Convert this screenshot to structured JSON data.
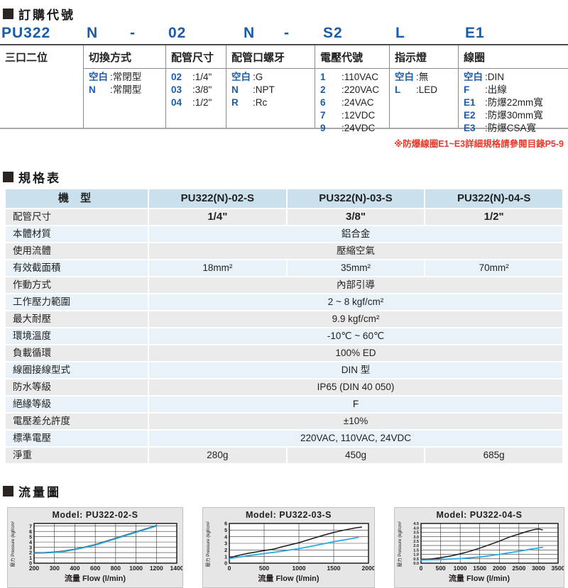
{
  "ordering": {
    "section_title": "訂購代號",
    "code": [
      "PU322",
      "N",
      "-",
      "02",
      "N",
      "-",
      "S2",
      "L",
      "E1"
    ],
    "columns": [
      {
        "header": "三口二位",
        "items": []
      },
      {
        "header": "切換方式",
        "items": [
          {
            "code": "空白",
            "desc": "常閉型"
          },
          {
            "code": "N",
            "desc": "常開型"
          }
        ]
      },
      {
        "header": "配管尺寸",
        "items": [
          {
            "code": "02",
            "desc": "1/4\""
          },
          {
            "code": "03",
            "desc": "3/8\""
          },
          {
            "code": "04",
            "desc": "1/2\""
          }
        ]
      },
      {
        "header": "配管口螺牙",
        "items": [
          {
            "code": "空白",
            "desc": "G"
          },
          {
            "code": "N",
            "desc": "NPT"
          },
          {
            "code": "R",
            "desc": "Rc"
          }
        ]
      },
      {
        "header": "電壓代號",
        "items": [
          {
            "code": "1",
            "desc": "110VAC"
          },
          {
            "code": "2",
            "desc": "220VAC"
          },
          {
            "code": "6",
            "desc": "24VAC"
          },
          {
            "code": "7",
            "desc": "12VDC"
          },
          {
            "code": "9",
            "desc": "24VDC"
          }
        ]
      },
      {
        "header": "指示燈",
        "items": [
          {
            "code": "空白",
            "desc": "無"
          },
          {
            "code": "L",
            "desc": "LED"
          }
        ]
      },
      {
        "header": "線圈",
        "items": [
          {
            "code": "空白",
            "desc": "DIN"
          },
          {
            "code": "F",
            "desc": "出線"
          },
          {
            "code": "E1",
            "desc": "防爆22mm寬"
          },
          {
            "code": "E2",
            "desc": "防爆30mm寬"
          },
          {
            "code": "E3",
            "desc": "防爆CSA寬"
          }
        ]
      }
    ],
    "note": "※防爆線圈E1~E3詳細規格請參閱目錄P5-9"
  },
  "spec": {
    "section_title": "規格表",
    "header": {
      "label": "機 型",
      "models": [
        "PU322(N)-02-S",
        "PU322(N)-03-S",
        "PU322(N)-04-S"
      ]
    },
    "rows": [
      {
        "label": "配管尺寸",
        "values": [
          "1/4\"",
          "3/8\"",
          "1/2\""
        ],
        "bold": true
      },
      {
        "label": "本體材質",
        "span": "鋁合金"
      },
      {
        "label": "使用流體",
        "span": "壓縮空氣"
      },
      {
        "label": "有效截面積",
        "values": [
          "18mm²",
          "35mm²",
          "70mm²"
        ]
      },
      {
        "label": "作動方式",
        "span": "內部引導"
      },
      {
        "label": "工作壓力範圍",
        "span": "2 ~ 8 kgf/cm²"
      },
      {
        "label": "最大耐壓",
        "span": "9.9 kgf/cm²"
      },
      {
        "label": "環境溫度",
        "span": "-10℃ ~ 60℃"
      },
      {
        "label": "負載循環",
        "span": "100% ED"
      },
      {
        "label": "線圈接線型式",
        "span": "DIN 型"
      },
      {
        "label": "防水等級",
        "span": "IP65 (DIN 40 050)"
      },
      {
        "label": "絕緣等級",
        "span": "F"
      },
      {
        "label": "電壓差允許度",
        "span": "±10%"
      },
      {
        "label": "標準電壓",
        "span": "220VAC, 110VAC, 24VDC"
      },
      {
        "label": "淨重",
        "values": [
          "280g",
          "450g",
          "685g"
        ]
      }
    ]
  },
  "flow": {
    "section_title": "流量圖"
  },
  "chart_data": [
    {
      "type": "line",
      "title": "Model: PU322-02-S",
      "xlabel": "流量 Flow (l/min)",
      "ylabel": "壓力 Pressure (kgf/cm²)",
      "xticks": [
        200,
        300,
        400,
        600,
        800,
        1000,
        1200,
        1400
      ],
      "yticks": [
        0,
        1,
        2,
        3,
        4,
        5,
        6,
        7
      ],
      "ylim": [
        0,
        7.5
      ],
      "legend": "none",
      "grid": true,
      "series": [
        {
          "name": "black-curve",
          "color": "#1a1a1a",
          "points": [
            [
              200,
              1.95
            ],
            [
              250,
              2.0
            ],
            [
              300,
              2.1
            ],
            [
              350,
              2.3
            ],
            [
              400,
              2.65
            ],
            [
              500,
              3.05
            ],
            [
              600,
              3.5
            ],
            [
              700,
              4.1
            ],
            [
              800,
              4.7
            ],
            [
              900,
              5.3
            ],
            [
              1000,
              5.9
            ],
            [
              1100,
              6.5
            ],
            [
              1200,
              7.1
            ]
          ]
        },
        {
          "name": "cyan-curve",
          "color": "#29abe2",
          "points": [
            [
              200,
              1.88
            ],
            [
              250,
              1.93
            ],
            [
              300,
              2.03
            ],
            [
              350,
              2.22
            ],
            [
              400,
              2.57
            ],
            [
              500,
              2.97
            ],
            [
              600,
              3.42
            ],
            [
              700,
              4.02
            ],
            [
              800,
              4.62
            ],
            [
              900,
              5.22
            ],
            [
              1000,
              5.82
            ],
            [
              1100,
              6.42
            ],
            [
              1200,
              7.0
            ]
          ]
        }
      ]
    },
    {
      "type": "line",
      "title": "Model: PU322-03-S",
      "xlabel": "流量 Flow (l/min)",
      "ylabel": "壓力 Pressure (kgf/cm²)",
      "xticks": [
        0,
        500,
        1000,
        1500,
        2000
      ],
      "yticks": [
        0,
        1,
        2,
        3,
        4,
        5,
        6
      ],
      "ylim": [
        0,
        6
      ],
      "legend": "none",
      "grid": true,
      "series": [
        {
          "name": "black-curve",
          "color": "#1a1a1a",
          "points": [
            [
              0,
              0.8
            ],
            [
              100,
              1.1
            ],
            [
              250,
              1.45
            ],
            [
              500,
              1.9
            ],
            [
              650,
              2.15
            ],
            [
              750,
              2.45
            ],
            [
              1000,
              3.1
            ],
            [
              1250,
              3.9
            ],
            [
              1400,
              4.35
            ],
            [
              1500,
              4.65
            ],
            [
              1650,
              5.0
            ],
            [
              1800,
              5.3
            ],
            [
              1900,
              5.45
            ]
          ]
        },
        {
          "name": "cyan-curve",
          "color": "#29abe2",
          "points": [
            [
              0,
              0.7
            ],
            [
              250,
              1.1
            ],
            [
              500,
              1.45
            ],
            [
              750,
              1.8
            ],
            [
              1000,
              2.2
            ],
            [
              1250,
              2.7
            ],
            [
              1500,
              3.25
            ],
            [
              1700,
              3.6
            ],
            [
              1850,
              3.9
            ]
          ]
        }
      ]
    },
    {
      "type": "line",
      "title": "Model: PU322-04-S",
      "xlabel": "流量 Flow (l/min)",
      "ylabel": "壓力 Pressure (kgf/cm²)",
      "xticks": [
        0,
        500,
        1000,
        1500,
        2000,
        2500,
        3000,
        3500
      ],
      "yticks": [
        "0.0",
        "0.5",
        "1.0",
        "1.5",
        "2.0",
        "2.5",
        "3.0",
        "3.5",
        "4.0",
        "4.5"
      ],
      "ylim": [
        0,
        4.5
      ],
      "legend": "none",
      "grid": true,
      "series": [
        {
          "name": "black-curve",
          "color": "#1a1a1a",
          "points": [
            [
              0,
              0.4
            ],
            [
              300,
              0.5
            ],
            [
              500,
              0.62
            ],
            [
              800,
              0.85
            ],
            [
              1000,
              1.05
            ],
            [
              1250,
              1.35
            ],
            [
              1500,
              1.7
            ],
            [
              1750,
              2.1
            ],
            [
              2000,
              2.5
            ],
            [
              2250,
              2.95
            ],
            [
              2500,
              3.3
            ],
            [
              2750,
              3.65
            ],
            [
              2900,
              3.82
            ],
            [
              3000,
              3.88
            ],
            [
              3100,
              3.78
            ]
          ]
        },
        {
          "name": "cyan-curve",
          "color": "#29abe2",
          "points": [
            [
              0,
              0.35
            ],
            [
              500,
              0.42
            ],
            [
              1000,
              0.52
            ],
            [
              1500,
              0.7
            ],
            [
              2000,
              1.0
            ],
            [
              2250,
              1.17
            ],
            [
              2500,
              1.35
            ],
            [
              2750,
              1.55
            ],
            [
              3000,
              1.72
            ],
            [
              3100,
              1.8
            ]
          ]
        }
      ]
    }
  ],
  "colors": {
    "accent_blue": "#1b5ca8",
    "note_red": "#e8392b",
    "spec_header_bg": "#cbe0ed",
    "stripe_gray": "#ebebeb",
    "stripe_blue": "#e8f2f8",
    "line_cyan": "#29abe2",
    "line_black": "#1a1a1a"
  }
}
